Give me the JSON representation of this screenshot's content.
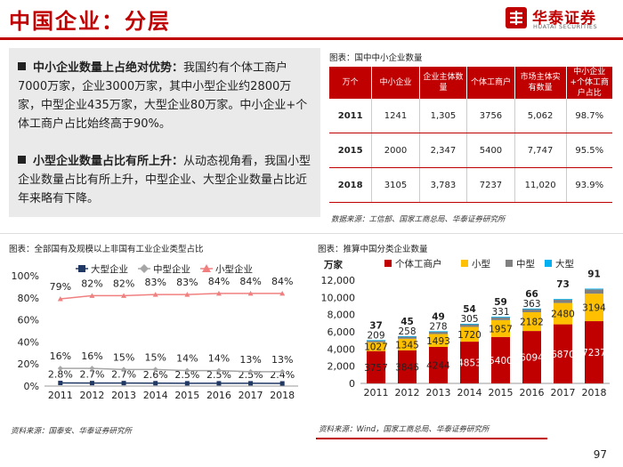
{
  "header": {
    "title": "中国企业：分层",
    "logo_name": "华泰证券",
    "logo_en": "HUATAI SECURITIES"
  },
  "bullets": [
    {
      "bold": "中小企业数量上占绝对优势：",
      "text": "我国约有个体工商户7000万家，企业3000万家，其中小型企业约2800万家，中型企业435万家，大型企业80万家。中小企业+个体工商户占比始终高于90%。"
    },
    {
      "bold": "小型企业数量占比有所上升：",
      "text": "从动态视角看，我国小型企业数量占比有所上升，中型企业、大型企业数量占比近年来略有下降。"
    }
  ],
  "table": {
    "caption": "图表：国中中小企业数量",
    "headers": [
      "万个",
      "中小企业",
      "企业主体数量",
      "个体工商户",
      "市场主体实有数量",
      "中小企业+个体工商户占比"
    ],
    "rows": [
      [
        "2011",
        "1241",
        "1,305",
        "3756",
        "5,062",
        "98.7%"
      ],
      [
        "2015",
        "2000",
        "2,347",
        "5400",
        "7,747",
        "95.5%"
      ],
      [
        "2018",
        "3105",
        "3,783",
        "7237",
        "11,020",
        "93.9%"
      ]
    ],
    "source": "数据来源：工信部、国家工商总局、华泰证券研究所"
  },
  "chart_data": [
    {
      "type": "line",
      "caption": "图表：全部国有及规模以上非国有工业企业类型占比",
      "categories": [
        "2011",
        "2012",
        "2013",
        "2014",
        "2015",
        "2016",
        "2017",
        "2018"
      ],
      "yticks": [
        "0%",
        "20%",
        "40%",
        "60%",
        "80%",
        "100%"
      ],
      "ylim": [
        0,
        100
      ],
      "series": [
        {
          "name": "大型企业",
          "color": "#1F3864",
          "values": [
            2.8,
            2.7,
            2.7,
            2.6,
            2.5,
            2.5,
            2.5,
            2.4
          ],
          "labels": [
            "2.8%",
            "2.7%",
            "2.7%",
            "2.6%",
            "2.5%",
            "2.5%",
            "2.5%",
            "2.4%"
          ]
        },
        {
          "name": "中型企业",
          "color": "#A6A6A6",
          "values": [
            16,
            16,
            15,
            15,
            14,
            14,
            13,
            13
          ],
          "labels": [
            "16%",
            "16%",
            "15%",
            "15%",
            "14%",
            "14%",
            "13%",
            "13%"
          ]
        },
        {
          "name": "小型企业",
          "color": "#F08080",
          "values": [
            79,
            82,
            82,
            83,
            83,
            84,
            84,
            84
          ],
          "labels": [
            "79%",
            "82%",
            "82%",
            "83%",
            "83%",
            "84%",
            "84%",
            "84%"
          ]
        }
      ],
      "source": "资料来源：国泰安、华泰证券研究所"
    },
    {
      "type": "bar",
      "stacked": true,
      "caption": "图表：推算中国分类企业数量",
      "ylabel": "万家",
      "categories": [
        "2011",
        "2012",
        "2013",
        "2014",
        "2015",
        "2016",
        "2017",
        "2018"
      ],
      "yticks": [
        "0",
        "2,000",
        "4,000",
        "6,000",
        "8,000",
        "10,000",
        "12,000"
      ],
      "ylim": [
        0,
        12000
      ],
      "series": [
        {
          "name": "个体工商户",
          "color": "#C00000",
          "values": [
            3757,
            3846,
            4244,
            4853,
            5400,
            6094,
            6870,
            7237
          ]
        },
        {
          "name": "小型",
          "color": "#FFC000",
          "values": [
            1027,
            1345,
            1493,
            1720,
            1957,
            2182,
            2480,
            3194
          ]
        },
        {
          "name": "中型",
          "color": "#808080",
          "values": [
            209,
            258,
            278,
            305,
            331,
            363,
            392,
            498
          ]
        },
        {
          "name": "大型",
          "color": "#00B0F0",
          "values": [
            37,
            45,
            49,
            54,
            59,
            66,
            73,
            91
          ]
        }
      ],
      "source": "资料来源：Wind，国家工商总局、华泰证券研究所"
    }
  ],
  "page_number": "97"
}
